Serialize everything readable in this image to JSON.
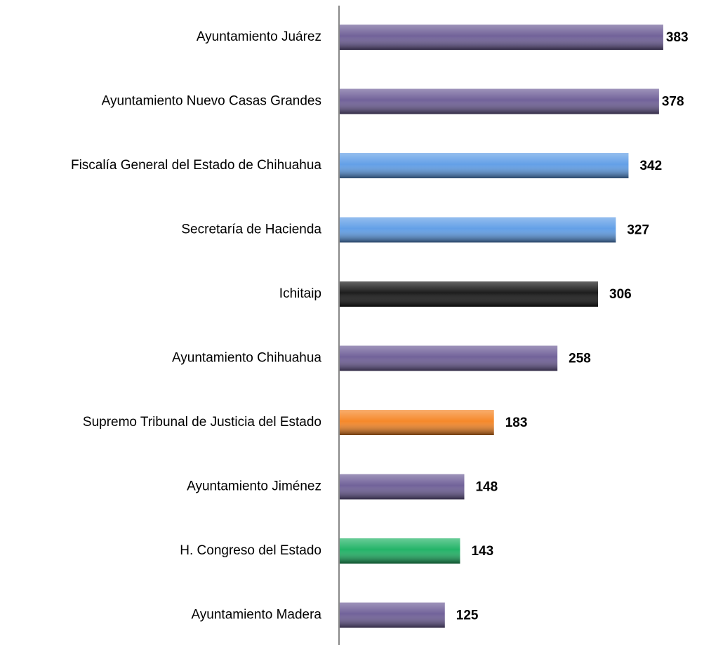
{
  "chart_data": {
    "type": "barh",
    "categories": [
      "Ayuntamiento Juárez",
      "Ayuntamiento Nuevo Casas Grandes",
      "Fiscalía General del Estado de Chihuahua",
      "Secretaría de Hacienda",
      "Ichitaip",
      "Ayuntamiento Chihuahua",
      "Supremo Tribunal de Justicia del Estado",
      "Ayuntamiento Jiménez",
      "H. Congreso del Estado",
      "Ayuntamiento Madera"
    ],
    "values": [
      383,
      378,
      342,
      327,
      306,
      258,
      183,
      148,
      143,
      125
    ],
    "colors": [
      "#6a5a94",
      "#6a5a94",
      "#5b9be6",
      "#5b9be6",
      "#111111",
      "#6a5a94",
      "#f5821f",
      "#6a5a94",
      "#18b060",
      "#6a5a94"
    ]
  }
}
